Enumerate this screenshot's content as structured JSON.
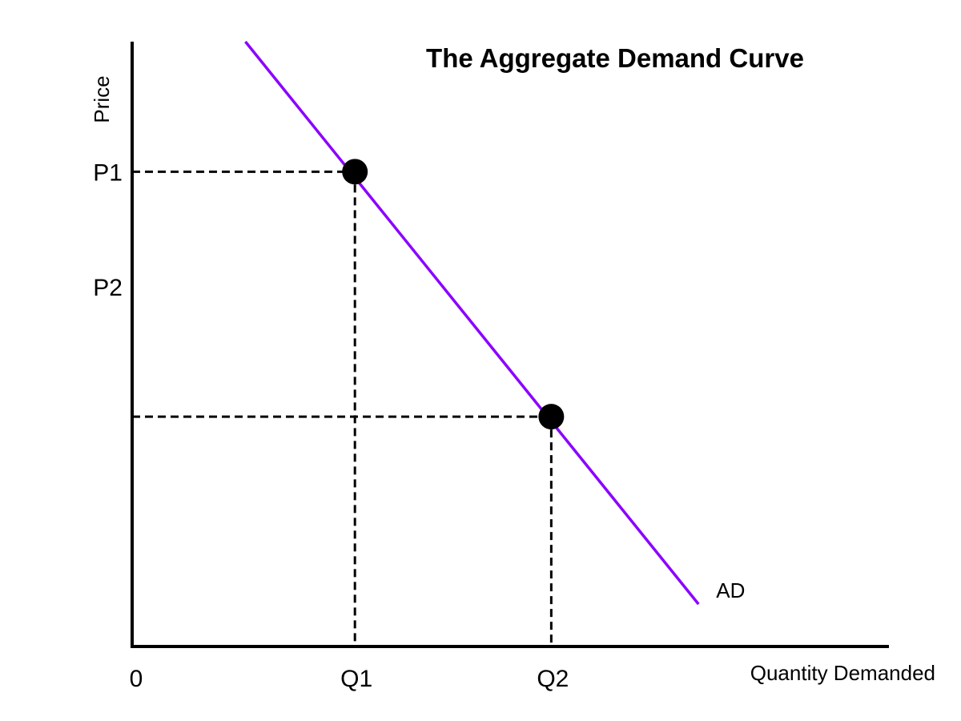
{
  "chart_data": {
    "type": "line",
    "title": "The Aggregate Demand Curve",
    "xlabel": "Quantity Demanded",
    "ylabel": "Price",
    "origin_label": "0",
    "grid": false,
    "xlim": [
      0,
      100
    ],
    "ylim": [
      0,
      100
    ],
    "series": [
      {
        "name": "AD",
        "color": "#8B00FF",
        "x": [
          15,
          75
        ],
        "y": [
          100,
          7
        ]
      }
    ],
    "points": [
      {
        "x": 29.5,
        "y": 78.5,
        "x_tick": "Q1",
        "y_tick": "P1"
      },
      {
        "x": 55.5,
        "y": 38.0,
        "x_tick": "Q2",
        "y_tick": ""
      }
    ],
    "y_ticks": [
      {
        "label": "P1",
        "value": 78.5
      },
      {
        "label": "P2",
        "value": 59.5
      }
    ],
    "x_ticks": [
      {
        "label": "Q1",
        "value": 29.5
      },
      {
        "label": "Q2",
        "value": 55.5
      }
    ]
  }
}
